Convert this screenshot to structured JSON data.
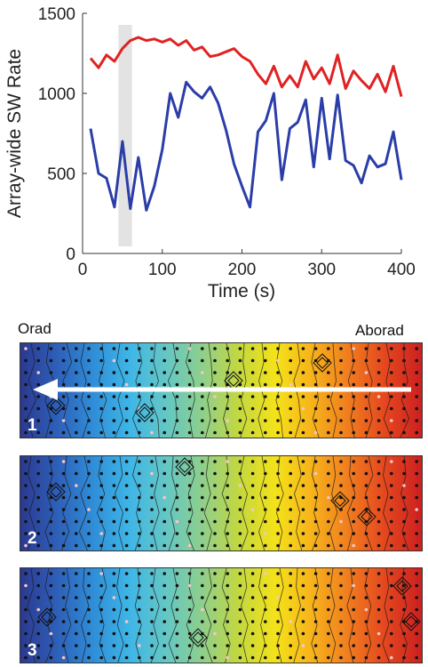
{
  "chart_data": {
    "type": "line",
    "xlabel": "Time (s)",
    "ylabel": "Array-wide SW Rate",
    "xlim": [
      0,
      400
    ],
    "ylim": [
      0,
      1500
    ],
    "xticks": [
      "0",
      "100",
      "200",
      "300",
      "400"
    ],
    "yticks": [
      "0",
      "500",
      "1000",
      "1500"
    ],
    "highlight_band": {
      "x": [
        45,
        62
      ],
      "color": "#e3e3e3"
    },
    "series": [
      {
        "color": "#e02222",
        "points": [
          [
            10,
            1220
          ],
          [
            20,
            1160
          ],
          [
            30,
            1240
          ],
          [
            40,
            1200
          ],
          [
            50,
            1280
          ],
          [
            60,
            1330
          ],
          [
            70,
            1350
          ],
          [
            80,
            1330
          ],
          [
            90,
            1340
          ],
          [
            100,
            1320
          ],
          [
            110,
            1340
          ],
          [
            120,
            1300
          ],
          [
            130,
            1330
          ],
          [
            140,
            1270
          ],
          [
            150,
            1290
          ],
          [
            160,
            1230
          ],
          [
            170,
            1240
          ],
          [
            180,
            1260
          ],
          [
            190,
            1280
          ],
          [
            200,
            1230
          ],
          [
            210,
            1200
          ],
          [
            220,
            1120
          ],
          [
            230,
            1060
          ],
          [
            240,
            1170
          ],
          [
            250,
            1040
          ],
          [
            260,
            1110
          ],
          [
            270,
            1040
          ],
          [
            280,
            1200
          ],
          [
            290,
            1090
          ],
          [
            300,
            1160
          ],
          [
            310,
            1060
          ],
          [
            320,
            1240
          ],
          [
            330,
            1030
          ],
          [
            340,
            1140
          ],
          [
            350,
            1080
          ],
          [
            360,
            1030
          ],
          [
            370,
            1120
          ],
          [
            380,
            1010
          ],
          [
            390,
            1170
          ],
          [
            400,
            980
          ]
        ]
      },
      {
        "color": "#2b3da8",
        "points": [
          [
            10,
            780
          ],
          [
            20,
            500
          ],
          [
            30,
            470
          ],
          [
            40,
            290
          ],
          [
            50,
            700
          ],
          [
            60,
            280
          ],
          [
            70,
            600
          ],
          [
            80,
            270
          ],
          [
            90,
            420
          ],
          [
            100,
            650
          ],
          [
            110,
            1000
          ],
          [
            120,
            850
          ],
          [
            130,
            1070
          ],
          [
            140,
            1010
          ],
          [
            150,
            970
          ],
          [
            160,
            1040
          ],
          [
            170,
            940
          ],
          [
            180,
            770
          ],
          [
            190,
            560
          ],
          [
            200,
            420
          ],
          [
            210,
            290
          ],
          [
            220,
            760
          ],
          [
            230,
            830
          ],
          [
            240,
            1000
          ],
          [
            250,
            460
          ],
          [
            260,
            780
          ],
          [
            270,
            820
          ],
          [
            280,
            960
          ],
          [
            290,
            540
          ],
          [
            300,
            970
          ],
          [
            310,
            590
          ],
          [
            320,
            990
          ],
          [
            330,
            580
          ],
          [
            340,
            550
          ],
          [
            350,
            440
          ],
          [
            360,
            610
          ],
          [
            370,
            540
          ],
          [
            380,
            560
          ],
          [
            390,
            760
          ],
          [
            400,
            460
          ]
        ]
      }
    ]
  },
  "maps": {
    "orad_label": "Orad",
    "aborad_label": "Aborad",
    "panels": [
      {
        "number": "1"
      },
      {
        "number": "2"
      },
      {
        "number": "3"
      }
    ]
  }
}
